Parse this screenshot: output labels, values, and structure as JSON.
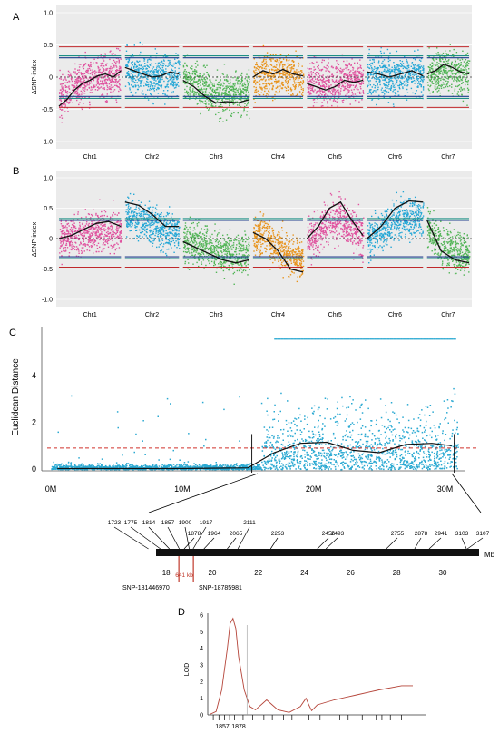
{
  "colors": {
    "chr_palette": [
      "#e0539f",
      "#25a7d6",
      "#52b556",
      "#e8931c",
      "#e0539f",
      "#25a7d6",
      "#52b556"
    ],
    "panel_bg": "#ebebeb",
    "ci95": "#c0282b",
    "ci99_upper": "#1d8f86",
    "ci99_lower": "#1f3c8c",
    "smooth": "#111111",
    "euclid_points": "#2aa9d2",
    "euclid_threshold": "#d0312b",
    "marker_highlight": "#c0392b",
    "lod_line": "#b5453a"
  },
  "chart_data": [
    {
      "panel_label": "A",
      "type": "scatter",
      "ylabel": "ΔSNP-index",
      "ylim": [
        -1.0,
        1.0
      ],
      "yticks": [
        "1.0",
        "0.5",
        "0",
        "-0.5",
        "-1.0"
      ],
      "chromosomes": [
        "Chr1",
        "Chr2",
        "Chr3",
        "Chr4",
        "Chr5",
        "Chr6",
        "Chr7"
      ],
      "grid": true,
      "thresholds": {
        "ci95": [
          0.47,
          -0.47
        ],
        "ci99_upper": [
          0.33,
          -0.33
        ],
        "ci99_lower": [
          0.3,
          -0.3
        ]
      },
      "smooth_delta": [
        [
          -0.45,
          -0.35,
          -0.2,
          -0.1,
          -0.05,
          0.02,
          0.05,
          0.0,
          0.1
        ],
        [
          0.15,
          0.1,
          0.05,
          0.0,
          0.02,
          0.08,
          0.05
        ],
        [
          -0.05,
          -0.15,
          -0.3,
          -0.4,
          -0.38,
          -0.4,
          -0.35
        ],
        [
          0.0,
          0.1,
          0.05,
          0.12,
          0.05,
          0.02
        ],
        [
          -0.1,
          -0.15,
          -0.2,
          -0.15,
          -0.05,
          -0.08,
          -0.05
        ],
        [
          0.08,
          0.05,
          0.0,
          0.05,
          0.1,
          0.02
        ],
        [
          0.05,
          0.1,
          0.2,
          0.15,
          0.08,
          0.05
        ]
      ]
    },
    {
      "panel_label": "B",
      "type": "scatter",
      "ylabel": "ΔSNP-index",
      "ylim": [
        -1.0,
        1.0
      ],
      "yticks": [
        "1.0",
        "0.5",
        "0",
        "-0.5",
        "-1.0"
      ],
      "chromosomes": [
        "Chr1",
        "Chr2",
        "Chr3",
        "Chr4",
        "Chr5",
        "Chr6",
        "Chr7"
      ],
      "grid": true,
      "thresholds": {
        "ci95": [
          0.47,
          -0.47
        ],
        "ci99_upper": [
          0.33,
          -0.33
        ],
        "ci99_lower": [
          0.3,
          -0.3
        ]
      },
      "smooth_delta": [
        [
          0.0,
          0.05,
          0.15,
          0.25,
          0.28,
          0.2
        ],
        [
          0.6,
          0.55,
          0.4,
          0.2,
          0.2
        ],
        [
          -0.05,
          -0.15,
          -0.25,
          -0.35,
          -0.4,
          -0.35
        ],
        [
          0.1,
          0.0,
          -0.2,
          -0.5,
          -0.55
        ],
        [
          0.0,
          0.2,
          0.5,
          0.6,
          0.3,
          0.05
        ],
        [
          0.0,
          0.2,
          0.5,
          0.62,
          0.6
        ],
        [
          0.3,
          -0.2,
          -0.35,
          -0.4
        ]
      ]
    },
    {
      "panel_label": "C",
      "type": "scatter",
      "ylabel": "Euclidean Distance",
      "xlim": [
        0,
        31
      ],
      "ylim": [
        0,
        5.8
      ],
      "xticks": [
        {
          "v": 0,
          "label": "0M"
        },
        {
          "v": 10,
          "label": "10M"
        },
        {
          "v": 20,
          "label": "20M"
        },
        {
          "v": 30,
          "label": "30M"
        }
      ],
      "yticks": [
        "0",
        "2",
        "4"
      ],
      "threshold": 0.9,
      "smooth_curve": [
        [
          0.5,
          0.02
        ],
        [
          10,
          0.02
        ],
        [
          15,
          0.05
        ],
        [
          17,
          0.7
        ],
        [
          19,
          1.1
        ],
        [
          21,
          1.15
        ],
        [
          23,
          0.8
        ],
        [
          25,
          0.7
        ],
        [
          27,
          1.05
        ],
        [
          29,
          1.1
        ],
        [
          30.5,
          1.0
        ]
      ]
    },
    {
      "panel_label": "",
      "type": "table",
      "unit_label": "Mb",
      "axis_ticks": [
        {
          "v": 18,
          "label": "18"
        },
        {
          "v": 20,
          "label": "20"
        },
        {
          "v": 22,
          "label": "22"
        },
        {
          "v": 24,
          "label": "24"
        },
        {
          "v": 26,
          "label": "26"
        },
        {
          "v": 28,
          "label": "28"
        },
        {
          "v": 30,
          "label": "30"
        }
      ],
      "markers": [
        {
          "label": "1723",
          "pos": 17.23
        },
        {
          "label": "1775",
          "pos": 17.75
        },
        {
          "label": "1814",
          "pos": 18.14
        },
        {
          "label": "1857",
          "pos": 18.57
        },
        {
          "label": "1900",
          "pos": 19.0
        },
        {
          "label": "1917",
          "pos": 19.17
        },
        {
          "label": "1878",
          "pos": 18.78
        },
        {
          "label": "1964",
          "pos": 19.64
        },
        {
          "label": "2065",
          "pos": 20.65
        },
        {
          "label": "2111",
          "pos": 21.11
        },
        {
          "label": "2253",
          "pos": 22.53
        },
        {
          "label": "2456",
          "pos": 24.56
        },
        {
          "label": "2493",
          "pos": 24.93
        },
        {
          "label": "2755",
          "pos": 27.55
        },
        {
          "label": "2878",
          "pos": 28.78
        },
        {
          "label": "2941",
          "pos": 29.41
        },
        {
          "label": "3103",
          "pos": 31.03
        },
        {
          "label": "3107",
          "pos": 31.07
        }
      ],
      "interval_label": "641 kb",
      "interval_snps": [
        "SNP-181446970",
        "SNP-18785981"
      ]
    },
    {
      "panel_label": "D",
      "type": "line",
      "ylabel": "LOD",
      "ylim": [
        0,
        6
      ],
      "yticks": [
        "0",
        "1",
        "2",
        "3",
        "4",
        "5",
        "6"
      ],
      "xtick_labels": [
        "1857",
        "1878"
      ],
      "lod_curve": [
        [
          0,
          0.05
        ],
        [
          1,
          0.2
        ],
        [
          2,
          1.5
        ],
        [
          3,
          4.0
        ],
        [
          3.5,
          5.5
        ],
        [
          4,
          5.8
        ],
        [
          4.5,
          5.2
        ],
        [
          5,
          3.5
        ],
        [
          6,
          1.5
        ],
        [
          7,
          0.5
        ],
        [
          8,
          0.3
        ],
        [
          10,
          0.9
        ],
        [
          11,
          0.6
        ],
        [
          12,
          0.3
        ],
        [
          14,
          0.15
        ],
        [
          16,
          0.5
        ],
        [
          17,
          1.0
        ],
        [
          17.5,
          0.6
        ],
        [
          18,
          0.25
        ],
        [
          19,
          0.6
        ],
        [
          22,
          0.9
        ],
        [
          26,
          1.2
        ],
        [
          30,
          1.5
        ],
        [
          34,
          1.75
        ],
        [
          36,
          1.75
        ]
      ]
    }
  ]
}
